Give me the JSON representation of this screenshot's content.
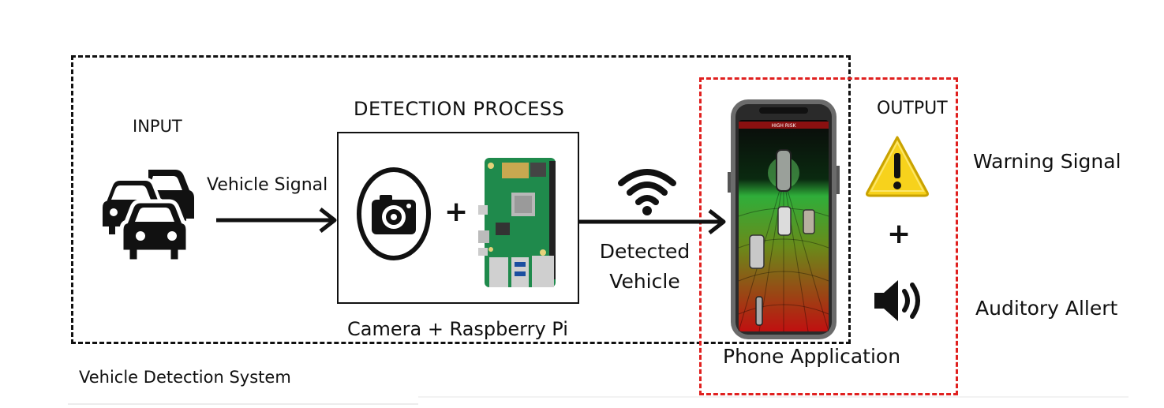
{
  "labels": {
    "input": "INPUT",
    "detection_process": "DETECTION PROCESS",
    "vehicle_signal": "Vehicle Signal",
    "detected_vehicle": "Detected Vehicle",
    "camera_raspberry": "Camera + Raspberry Pi",
    "system": "Vehicle Detection System",
    "phone_application": "Phone Application",
    "output": "OUTPUT",
    "warning_signal": "Warning Signal",
    "auditory_alert": "Auditory Allert",
    "plus": "+",
    "phone_header": "HIGH RISK"
  },
  "icons": {
    "cars": "cars-icon",
    "camera": "camera-icon",
    "raspberry_pi": "raspberry-pi-board-icon",
    "wifi": "wifi-icon",
    "phone": "phone-icon",
    "warning": "warning-triangle-icon",
    "speaker": "speaker-icon"
  },
  "colors": {
    "system_border": "#111111",
    "output_border": "#e0201f",
    "warning_fill": "#f7d21c",
    "board_green": "#1f8a4c"
  }
}
